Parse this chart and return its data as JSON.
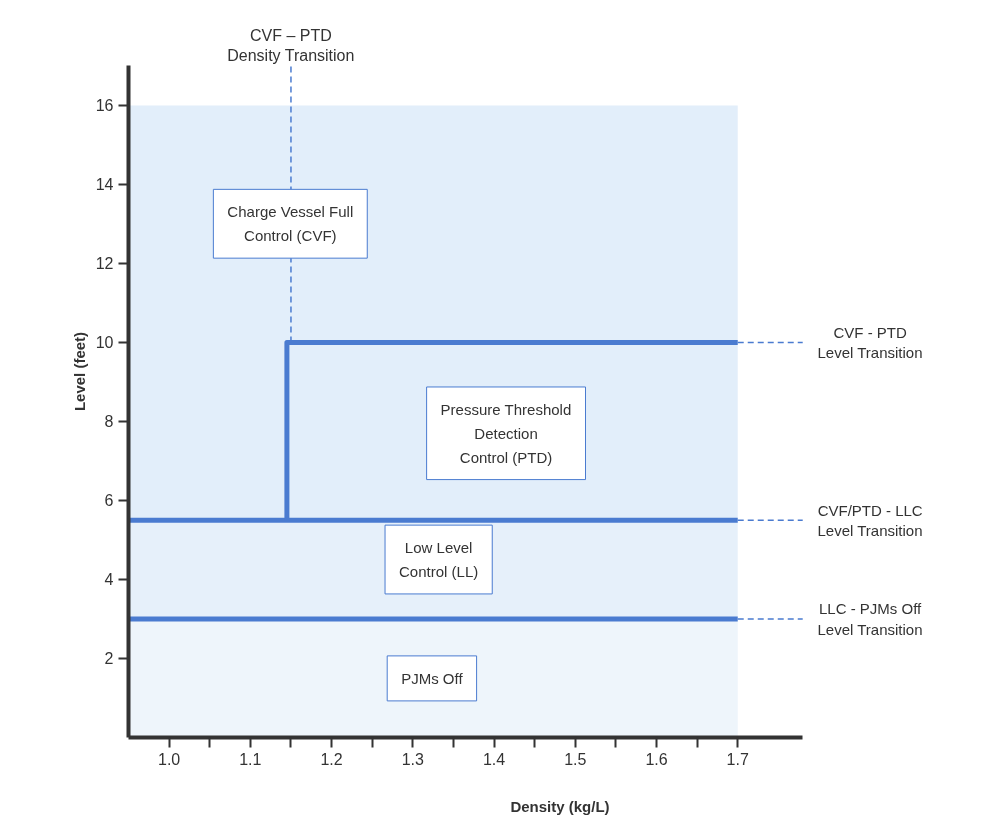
{
  "chart_data": {
    "type": "line",
    "xlabel": "Density (kg/L)",
    "ylabel": "Level (feet)",
    "xlim": [
      0.95,
      1.78
    ],
    "ylim": [
      0,
      17
    ],
    "xticks": [
      {
        "value": 1.0,
        "label": "1.0"
      },
      {
        "value": 1.05,
        "label": null
      },
      1.1,
      {
        "value": 1.15,
        "label": null
      },
      1.2,
      {
        "value": 1.25,
        "label": null
      },
      1.3,
      {
        "value": 1.35,
        "label": null
      },
      1.4,
      {
        "value": 1.45,
        "label": null
      },
      1.5,
      {
        "value": 1.55,
        "label": null
      },
      1.6,
      {
        "value": 1.65,
        "label": null
      },
      1.7
    ],
    "yticks": [
      2,
      4,
      6,
      8,
      10,
      12,
      14,
      16
    ],
    "grid": false,
    "marker": "none",
    "line_style": "solid",
    "series": [
      {
        "color": "#4a7bd0",
        "x": [
          0.95,
          1.7
        ],
        "values": [
          3,
          3
        ]
      },
      {
        "color": "#4a7bd0",
        "x": [
          0.95,
          1.7
        ],
        "values": [
          5.5,
          5.5
        ]
      },
      {
        "color": "#4a7bd0",
        "x": [
          1.145,
          1.145,
          1.7
        ],
        "values": [
          5.5,
          10,
          10
        ]
      }
    ],
    "bands": [
      {
        "axis": "y",
        "from": 0,
        "to": 3,
        "color": "#eef5fb"
      },
      {
        "axis": "y",
        "from": 3,
        "to": 5.5,
        "color": "#e6f0fa"
      },
      {
        "axis": "y",
        "from": 5.5,
        "to": 16,
        "color": "#e2eefa"
      }
    ],
    "ref_lines": [
      {
        "axis": "x",
        "value": 1.15,
        "label": "CVF – PTD\nDensity Transition",
        "color": "#4a7bd0",
        "line_style": "dashed"
      },
      {
        "axis": "y",
        "value": 10,
        "label": "CVF - PTD\nLevel Transition",
        "color": "#4a7bd0",
        "line_style": "dashed"
      },
      {
        "axis": "y",
        "value": 5.5,
        "label": "CVF/PTD - LLC\nLevel Transition",
        "color": "#4a7bd0",
        "line_style": "dashed"
      },
      {
        "axis": "y",
        "value": 3,
        "label": "LLC - PJMs Off\nLevel Transition",
        "color": "#4a7bd0",
        "line_style": "dashed"
      }
    ],
    "annotations": [
      "Charge Vessel Full\nControl (CVF)",
      "Pressure Threshold\nDetection\nControl (PTD)",
      "Low Level\nControl (LL)",
      "PJMs Off"
    ]
  }
}
